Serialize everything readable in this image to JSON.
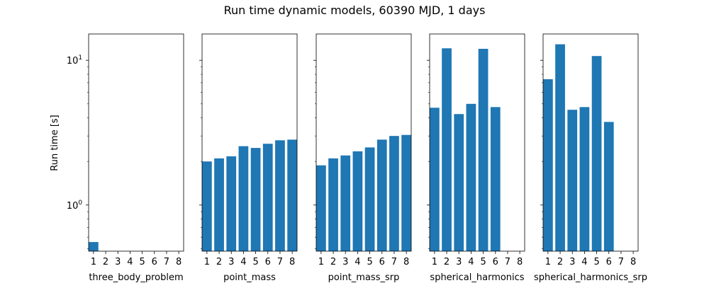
{
  "figure": {
    "title": "Run time dynamic models, 60390 MJD, 1 days",
    "ylabel": "Run time [s]",
    "bar_color": "#1f77b4"
  },
  "chart_data": [
    {
      "type": "bar",
      "xlabel": "three_body_problem",
      "categories": [
        "1",
        "2",
        "3",
        "4",
        "5",
        "6",
        "7",
        "8"
      ],
      "values": [
        0.555,
        null,
        null,
        null,
        null,
        null,
        null,
        null
      ],
      "yscale": "log",
      "ylim": [
        0.48,
        15.2
      ],
      "yticks": [
        {
          "value": 1,
          "label": "10^0"
        },
        {
          "value": 10,
          "label": "10^1"
        }
      ]
    },
    {
      "type": "bar",
      "xlabel": "point_mass",
      "categories": [
        "1",
        "2",
        "3",
        "4",
        "5",
        "6",
        "7",
        "8"
      ],
      "values": [
        2.0,
        2.1,
        2.17,
        2.55,
        2.48,
        2.65,
        2.8,
        2.83
      ],
      "yscale": "log",
      "ylim": [
        0.48,
        15.2
      ]
    },
    {
      "type": "bar",
      "xlabel": "point_mass_srp",
      "categories": [
        "1",
        "2",
        "3",
        "4",
        "5",
        "6",
        "7",
        "8"
      ],
      "values": [
        1.88,
        2.1,
        2.2,
        2.35,
        2.5,
        2.83,
        3.0,
        3.05
      ],
      "yscale": "log",
      "ylim": [
        0.48,
        15.2
      ]
    },
    {
      "type": "bar",
      "xlabel": "spherical_harmonics",
      "categories": [
        "1",
        "2",
        "3",
        "4",
        "5",
        "6",
        "7",
        "8"
      ],
      "values": [
        4.7,
        12.1,
        4.25,
        5.0,
        12.0,
        4.75,
        null,
        null
      ],
      "yscale": "log",
      "ylim": [
        0.48,
        15.2
      ]
    },
    {
      "type": "bar",
      "xlabel": "spherical_harmonics_srp",
      "categories": [
        "1",
        "2",
        "3",
        "4",
        "5",
        "6",
        "7",
        "8"
      ],
      "values": [
        7.4,
        12.9,
        4.55,
        4.75,
        10.7,
        3.75,
        null,
        null
      ],
      "yscale": "log",
      "ylim": [
        0.48,
        15.2
      ]
    }
  ]
}
